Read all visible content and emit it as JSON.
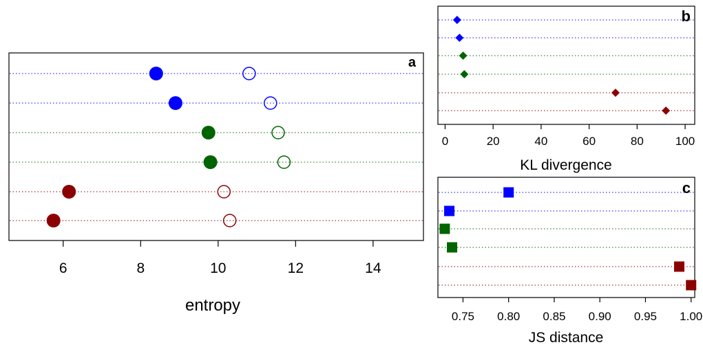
{
  "colors": {
    "blue": "#0000ff",
    "green": "#006400",
    "red": "#8b0000"
  },
  "chart_data": [
    {
      "panel": "a",
      "type": "scatter",
      "xlabel": "entropy",
      "xlim": [
        4.6,
        15.3
      ],
      "x_ticks": [
        6,
        8,
        10,
        12,
        14
      ],
      "x_tick_labels": [
        "6",
        "8",
        "10",
        "12",
        "14"
      ],
      "rows": [
        {
          "color": "blue",
          "filled": 8.4,
          "open": 10.8
        },
        {
          "color": "blue",
          "filled": 8.9,
          "open": 11.35
        },
        {
          "color": "green",
          "filled": 9.75,
          "open": 11.55
        },
        {
          "color": "green",
          "filled": 9.8,
          "open": 11.7
        },
        {
          "color": "red",
          "filled": 6.15,
          "open": 10.15
        },
        {
          "color": "red",
          "filled": 5.75,
          "open": 10.3
        }
      ]
    },
    {
      "panel": "b",
      "type": "scatter",
      "marker": "diamond",
      "xlabel": "KL divergence",
      "xlim": [
        -3,
        104
      ],
      "x_ticks": [
        0,
        20,
        40,
        60,
        80,
        100
      ],
      "x_tick_labels": [
        "0",
        "20",
        "40",
        "60",
        "80",
        "100"
      ],
      "rows": [
        {
          "color": "blue",
          "value": 5
        },
        {
          "color": "blue",
          "value": 6
        },
        {
          "color": "green",
          "value": 7.5
        },
        {
          "color": "green",
          "value": 8
        },
        {
          "color": "red",
          "value": 71
        },
        {
          "color": "red",
          "value": 92
        }
      ]
    },
    {
      "panel": "c",
      "type": "scatter",
      "marker": "square",
      "xlabel": "JS distance",
      "xlim": [
        0.7225,
        1.004
      ],
      "x_ticks": [
        0.75,
        0.8,
        0.85,
        0.9,
        0.95,
        1.0
      ],
      "x_tick_labels": [
        "0.75",
        "0.80",
        "0.85",
        "0.90",
        "0.95",
        "1.00"
      ],
      "rows": [
        {
          "color": "blue",
          "value": 0.8
        },
        {
          "color": "blue",
          "value": 0.735
        },
        {
          "color": "green",
          "value": 0.73
        },
        {
          "color": "green",
          "value": 0.738
        },
        {
          "color": "red",
          "value": 0.987
        },
        {
          "color": "red",
          "value": 1.0
        }
      ]
    }
  ]
}
